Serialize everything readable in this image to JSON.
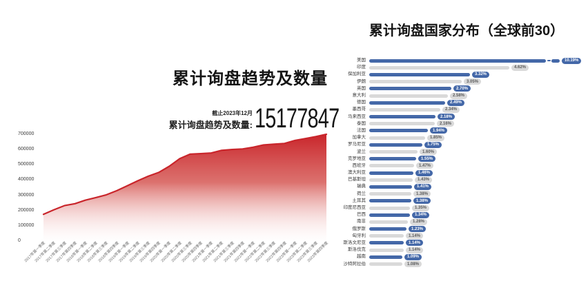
{
  "page": {
    "background": "#ffffff"
  },
  "left_chart": {
    "title": "累计询盘趋势及数量",
    "as_of": "截止2023年12月",
    "total_label": "累计询盘趋势及数量:",
    "total_value": "15177847"
  },
  "right_chart": {
    "title": "累计询盘国家分布（全球前30）"
  },
  "colors": {
    "line_red": "#c9252b",
    "area_red_top": "#c9252b",
    "area_red_mid": "#d4524e",
    "area_fade": "#fdf3f3",
    "bar_blue": "#4468a8",
    "bar_gray": "#d9d9d9",
    "pill_text_on_blue": "#ffffff",
    "pill_text_on_gray": "#5a5a5a"
  },
  "chart_data": [
    {
      "type": "area",
      "title": "累计询盘趋势及数量",
      "xlabel": "",
      "ylabel": "",
      "ylim": [
        0,
        700000
      ],
      "yticks": [
        0,
        100000,
        200000,
        300000,
        400000,
        500000,
        600000,
        700000
      ],
      "grid": false,
      "legend": "none",
      "categories": [
        "2017年第一季度",
        "2017年第二季度",
        "2017年第三季度",
        "2017年第四季度",
        "2018年第一季度",
        "2018年第二季度",
        "2018年第三季度",
        "2018年第四季度",
        "2019年第一季度",
        "2019年第二季度",
        "2019年第三季度",
        "2019年第四季度",
        "2020年第一季度",
        "2020年第二季度",
        "2020年第三季度",
        "2020年第四季度",
        "2021年第一季度",
        "2021年第二季度",
        "2021年第三季度",
        "2021年第四季度",
        "2022年第一季度",
        "2022年第二季度",
        "2022年第三季度",
        "2022年第四季度",
        "2023年第一季度",
        "2023年第二季度",
        "2023年第三季度",
        "2023年第四季度"
      ],
      "values": [
        175000,
        205000,
        232000,
        245000,
        268000,
        285000,
        303000,
        330000,
        362000,
        395000,
        425000,
        450000,
        490000,
        540000,
        570000,
        573000,
        577000,
        595000,
        600000,
        604000,
        615000,
        630000,
        635000,
        640000,
        660000,
        672000,
        685000,
        700000
      ]
    },
    {
      "type": "bar",
      "orientation": "horizontal",
      "title": "累计询盘国家分布（全球前30）",
      "xlabel": "",
      "ylabel": "",
      "grid": false,
      "legend": "none",
      "axis_break_on_first_bar": true,
      "rows": [
        {
          "label": "美国",
          "value": "10.19%",
          "pct": 10.19,
          "truncated": true
        },
        {
          "label": "印度",
          "value": "4.62%",
          "pct": 4.62
        },
        {
          "label": "保加利亚",
          "value": "3.32%",
          "pct": 3.32
        },
        {
          "label": "伊朗",
          "value": "3.05%",
          "pct": 3.05
        },
        {
          "label": "英国",
          "value": "2.70%",
          "pct": 2.7
        },
        {
          "label": "意大利",
          "value": "2.58%",
          "pct": 2.58
        },
        {
          "label": "德国",
          "value": "2.49%",
          "pct": 2.49
        },
        {
          "label": "墨西哥",
          "value": "2.34%",
          "pct": 2.34
        },
        {
          "label": "马来西亚",
          "value": "2.18%",
          "pct": 2.18
        },
        {
          "label": "泰国",
          "value": "2.16%",
          "pct": 2.16
        },
        {
          "label": "法国",
          "value": "1.94%",
          "pct": 1.94
        },
        {
          "label": "加拿大",
          "value": "1.85%",
          "pct": 1.85
        },
        {
          "label": "罗马尼亚",
          "value": "1.75%",
          "pct": 1.75
        },
        {
          "label": "波兰",
          "value": "1.60%",
          "pct": 1.6
        },
        {
          "label": "克罗地亚",
          "value": "1.55%",
          "pct": 1.55
        },
        {
          "label": "西班牙",
          "value": "1.47%",
          "pct": 1.47
        },
        {
          "label": "澳大利亚",
          "value": "1.46%",
          "pct": 1.46
        },
        {
          "label": "巴基斯坦",
          "value": "1.43%",
          "pct": 1.43
        },
        {
          "label": "瑞典",
          "value": "1.41%",
          "pct": 1.41
        },
        {
          "label": "荷兰",
          "value": "1.38%",
          "pct": 1.38
        },
        {
          "label": "土耳其",
          "value": "1.38%",
          "pct": 1.38
        },
        {
          "label": "印度尼西亚",
          "value": "1.35%",
          "pct": 1.35
        },
        {
          "label": "巴西",
          "value": "1.34%",
          "pct": 1.34
        },
        {
          "label": "南非",
          "value": "1.28%",
          "pct": 1.28
        },
        {
          "label": "俄罗斯",
          "value": "1.23%",
          "pct": 1.23
        },
        {
          "label": "匈牙利",
          "value": "1.14%",
          "pct": 1.14
        },
        {
          "label": "斯洛文尼亚",
          "value": "1.14%",
          "pct": 1.14
        },
        {
          "label": "斯洛伐克",
          "value": "1.14%",
          "pct": 1.14
        },
        {
          "label": "越南",
          "value": "1.09%",
          "pct": 1.09
        },
        {
          "label": "沙特阿拉伯",
          "value": "1.08%",
          "pct": 1.08
        }
      ]
    }
  ]
}
